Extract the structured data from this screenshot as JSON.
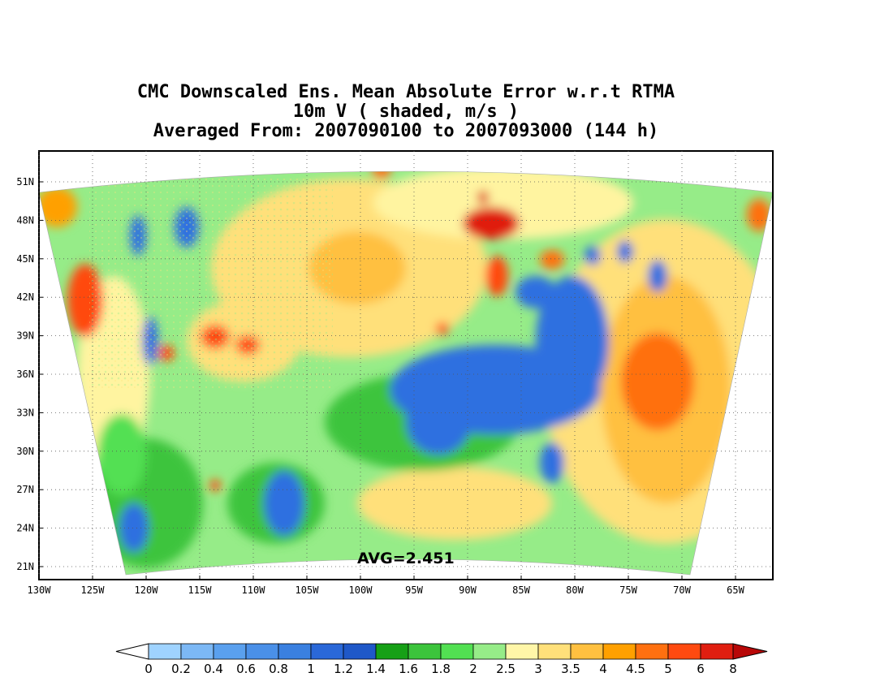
{
  "title": {
    "line1": "CMC Downscaled Ens. Mean Absolute Error w.r.t RTMA",
    "line2": "10m V ( shaded, m/s )",
    "line3": "Averaged From: 2007090100 to 2007093000 (144 h)"
  },
  "map": {
    "lat_labels": [
      "51N",
      "48N",
      "45N",
      "42N",
      "39N",
      "36N",
      "33N",
      "30N",
      "27N",
      "24N",
      "21N"
    ],
    "lon_labels": [
      "130W",
      "125W",
      "120W",
      "115W",
      "110W",
      "105W",
      "100W",
      "95W",
      "90W",
      "85W",
      "80W",
      "75W",
      "70W",
      "65W"
    ],
    "average_label": "AVG=2.451",
    "grid_lines": "dotted"
  },
  "colorbar": {
    "labels": [
      "0",
      "0.2",
      "0.4",
      "0.6",
      "0.8",
      "1",
      "1.2",
      "1.4",
      "1.6",
      "1.8",
      "2",
      "2.5",
      "3",
      "3.5",
      "4",
      "4.5",
      "5",
      "6",
      "8"
    ],
    "colors": [
      "#9fd3ff",
      "#7cb8f5",
      "#5aa0ee",
      "#4a90e8",
      "#3a80e0",
      "#2a68d8",
      "#1f58c8",
      "#16a016",
      "#3cc43c",
      "#52e052",
      "#96ec88",
      "#fff6a8",
      "#ffe07a",
      "#ffc040",
      "#ffa000",
      "#ff7010",
      "#ff4a10",
      "#e01e10",
      "#b80808"
    ],
    "under_color": "#ffffff",
    "over_color": "#b80808"
  },
  "palette": {
    "blue": "#2e6fe0",
    "dark_green": "#18a818",
    "green": "#4cd84c",
    "light_green": "#96ec88",
    "pale_yellow": "#fff4a0",
    "yellow": "#ffd870",
    "orange": "#ffa020",
    "red": "#f03010"
  }
}
